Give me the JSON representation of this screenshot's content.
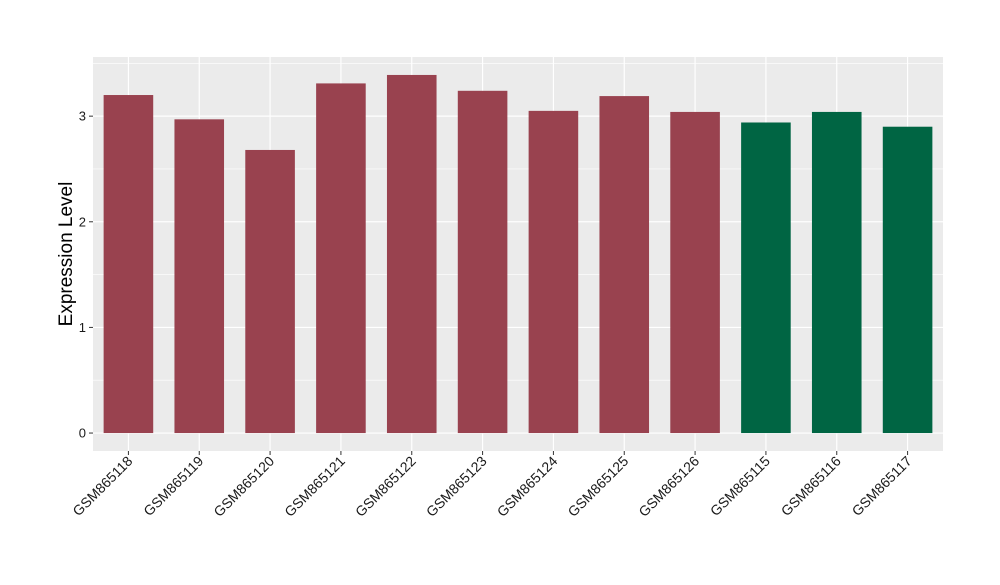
{
  "chart_data": {
    "type": "bar",
    "title": "",
    "xlabel": "",
    "ylabel": "Expression Level",
    "categories": [
      "GSM865118",
      "GSM865119",
      "GSM865120",
      "GSM865121",
      "GSM865122",
      "GSM865123",
      "GSM865124",
      "GSM865125",
      "GSM865126",
      "GSM865115",
      "GSM865116",
      "GSM865117"
    ],
    "values": [
      3.2,
      2.97,
      2.68,
      3.31,
      3.39,
      3.24,
      3.05,
      3.19,
      3.04,
      2.94,
      3.04,
      2.9
    ],
    "bar_colors": [
      "#99424F",
      "#99424F",
      "#99424F",
      "#99424F",
      "#99424F",
      "#99424F",
      "#99424F",
      "#99424F",
      "#99424F",
      "#006543",
      "#006543",
      "#006543"
    ],
    "ylim": [
      -0.17,
      3.56
    ],
    "yticks": [
      0,
      1,
      2,
      3
    ],
    "grid": true,
    "panel_background": "#EBEBEB",
    "grid_color": "#FFFFFF",
    "legend": "none"
  }
}
